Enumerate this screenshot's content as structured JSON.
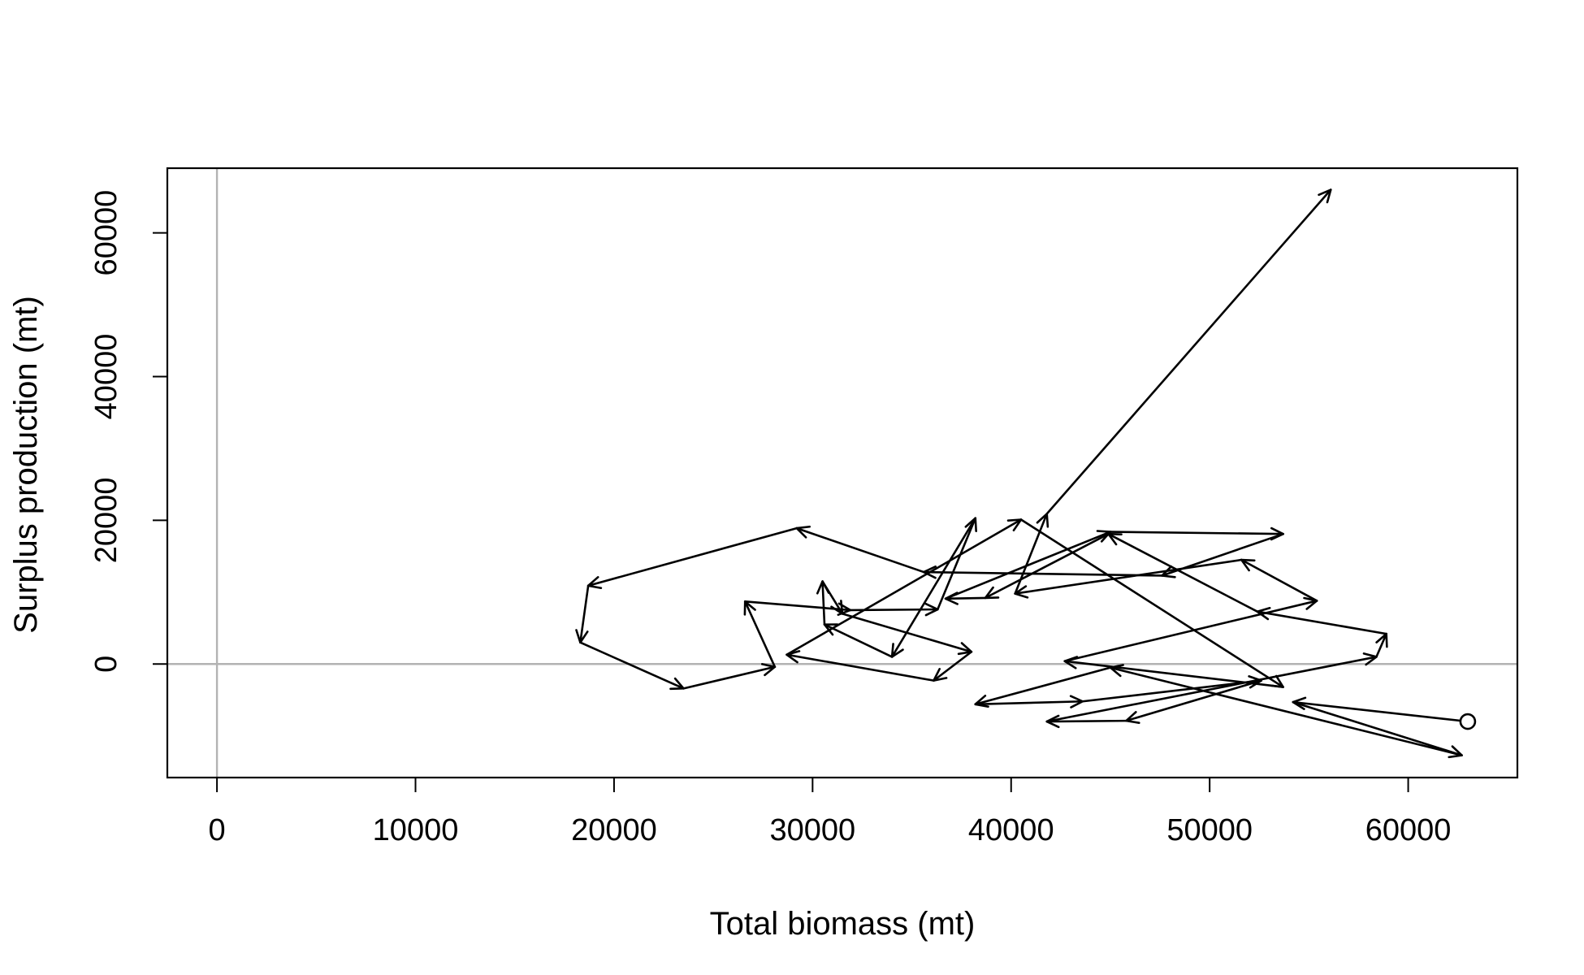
{
  "chart_data": {
    "type": "line",
    "title": "",
    "xlabel": "Total biomass (mt)",
    "ylabel": "Surplus production (mt)",
    "xlim": [
      -2500,
      65500
    ],
    "ylim": [
      -15800,
      69000
    ],
    "x_ticks": [
      0,
      10000,
      20000,
      30000,
      40000,
      50000,
      60000
    ],
    "y_ticks": [
      0,
      20000,
      40000,
      60000
    ],
    "x_tick_labels": [
      "0",
      "10000",
      "20000",
      "30000",
      "40000",
      "50000",
      "60000"
    ],
    "y_tick_labels": [
      "0",
      "20000",
      "40000",
      "60000"
    ],
    "reference_lines": {
      "x": 0,
      "y": 0,
      "color": "#b3b3b3"
    },
    "start_marker": "open-circle",
    "arrows": true,
    "series": [
      {
        "x": [
          63000,
          54200,
          62700,
          45000,
          38200,
          43600,
          52600,
          45800,
          41800,
          58400,
          58900,
          52400,
          44900,
          38700,
          36700,
          45000,
          53700,
          47600,
          35600,
          29200,
          18700,
          18300,
          23500,
          28100,
          26600,
          31900,
          36300,
          38200,
          34000,
          30600,
          30500,
          31500,
          38000,
          36100,
          28700,
          40500,
          53700,
          42700,
          55400,
          51600,
          40200,
          41800,
          56100
        ],
        "y": [
          -8000,
          -5300,
          -12700,
          -500,
          -5600,
          -5200,
          -2300,
          -7900,
          -8000,
          1000,
          4200,
          7300,
          18100,
          9200,
          9100,
          18400,
          18100,
          12300,
          12800,
          18900,
          10900,
          3000,
          -3400,
          -400,
          8700,
          7500,
          7600,
          20300,
          1000,
          5500,
          11500,
          7000,
          1700,
          -2300,
          1300,
          20100,
          -3200,
          400,
          8800,
          14500,
          9800,
          20900,
          66000
        ]
      }
    ]
  }
}
